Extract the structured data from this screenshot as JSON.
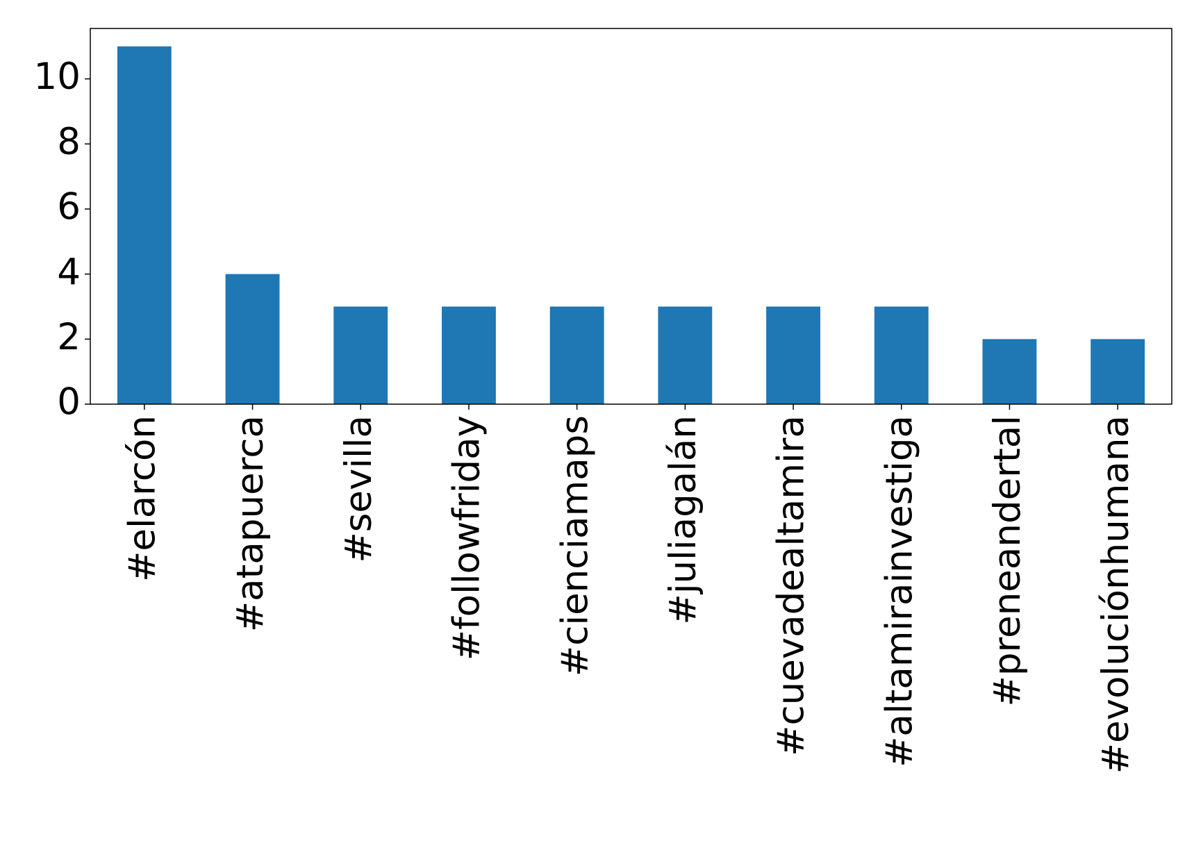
{
  "chart_data": {
    "type": "bar",
    "categories": [
      "#elarcón",
      "#atapuerca",
      "#sevilla",
      "#followfriday",
      "#cienciamaps",
      "#juliagalán",
      "#cuevadealtamira",
      "#altamirainvestiga",
      "#preneandertal",
      "#evoluciónhumana"
    ],
    "values": [
      11,
      4,
      3,
      3,
      3,
      3,
      3,
      3,
      2,
      2
    ],
    "color": "#1f77b4",
    "ylim": [
      0,
      11.55
    ],
    "yticks": [
      0,
      2,
      4,
      6,
      8,
      10
    ],
    "grid": false
  }
}
